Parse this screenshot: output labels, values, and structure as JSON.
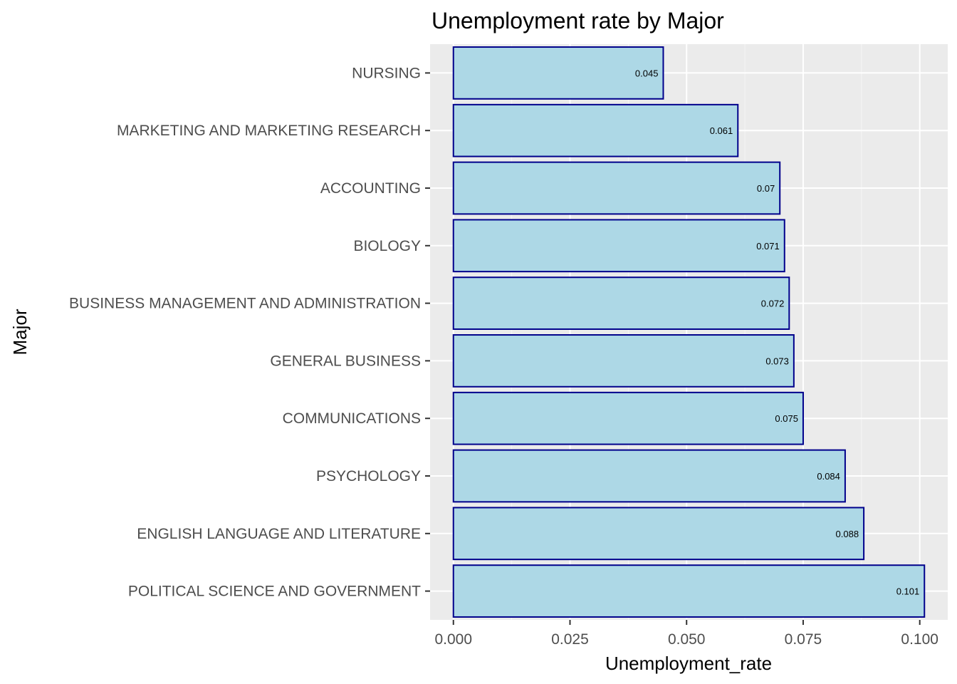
{
  "chart_data": {
    "type": "bar",
    "orientation": "horizontal",
    "title": "Unemployment rate by Major",
    "xlabel": "Unemployment_rate",
    "ylabel": "Major",
    "categories": [
      "NURSING",
      "MARKETING AND MARKETING RESEARCH",
      "ACCOUNTING",
      "BIOLOGY",
      "BUSINESS MANAGEMENT AND ADMINISTRATION",
      "GENERAL BUSINESS",
      "COMMUNICATIONS",
      "PSYCHOLOGY",
      "ENGLISH LANGUAGE AND LITERATURE",
      "POLITICAL SCIENCE AND GOVERNMENT"
    ],
    "values": [
      0.045,
      0.061,
      0.07,
      0.071,
      0.072,
      0.073,
      0.075,
      0.084,
      0.088,
      0.101
    ],
    "value_labels": [
      "0.045",
      "0.061",
      "0.07",
      "0.071",
      "0.072",
      "0.073",
      "0.075",
      "0.084",
      "0.088",
      "0.101"
    ],
    "xlim": [
      -0.005,
      0.106
    ],
    "x_ticks": [
      0,
      0.025,
      0.05,
      0.075,
      0.1
    ],
    "x_tick_labels": [
      "0.000",
      "0.025",
      "0.050",
      "0.075",
      "0.100"
    ],
    "grid": true,
    "legend": "none",
    "colors": {
      "bar_fill": "#add8e6",
      "bar_stroke": "#00008b",
      "panel_background": "#ebebeb",
      "grid_major": "#ffffff",
      "grid_minor": "#f5f5f5"
    }
  }
}
